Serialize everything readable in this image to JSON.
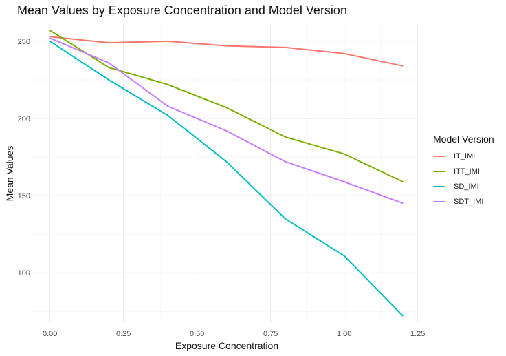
{
  "chart_data": {
    "type": "line",
    "title": "Mean Values by Exposure Concentration and Model Version",
    "xlabel": "Exposure Concentration",
    "ylabel": "Mean Values",
    "xlim": [
      -0.06,
      1.26
    ],
    "ylim": [
      68,
      262
    ],
    "x_ticks": [
      0.0,
      0.25,
      0.5,
      0.75,
      1.0,
      1.25
    ],
    "x_tick_labels": [
      "0.00",
      "0.25",
      "0.50",
      "0.75",
      "1.00",
      "1.25"
    ],
    "y_ticks": [
      100,
      150,
      200,
      250
    ],
    "y_tick_labels": [
      "100",
      "150",
      "200",
      "250"
    ],
    "grid": true,
    "legend": {
      "title": "Model Version",
      "position": "right"
    },
    "x": [
      0.0,
      0.2,
      0.4,
      0.6,
      0.8,
      1.0,
      1.2
    ],
    "series": [
      {
        "name": "IT_IMI",
        "color": "#F8766D",
        "values": [
          253,
          249,
          250,
          247,
          246,
          242,
          234
        ]
      },
      {
        "name": "ITT_IMI",
        "color": "#7CAE00",
        "values": [
          257,
          233,
          222,
          207,
          188,
          177,
          159
        ]
      },
      {
        "name": "SD_IMI",
        "color": "#00BFC4",
        "values": [
          250,
          225,
          202,
          172,
          135,
          111,
          72
        ]
      },
      {
        "name": "SDT_IMI",
        "color": "#C77CFF",
        "values": [
          252,
          236,
          208,
          192,
          172,
          159,
          145
        ]
      }
    ]
  }
}
